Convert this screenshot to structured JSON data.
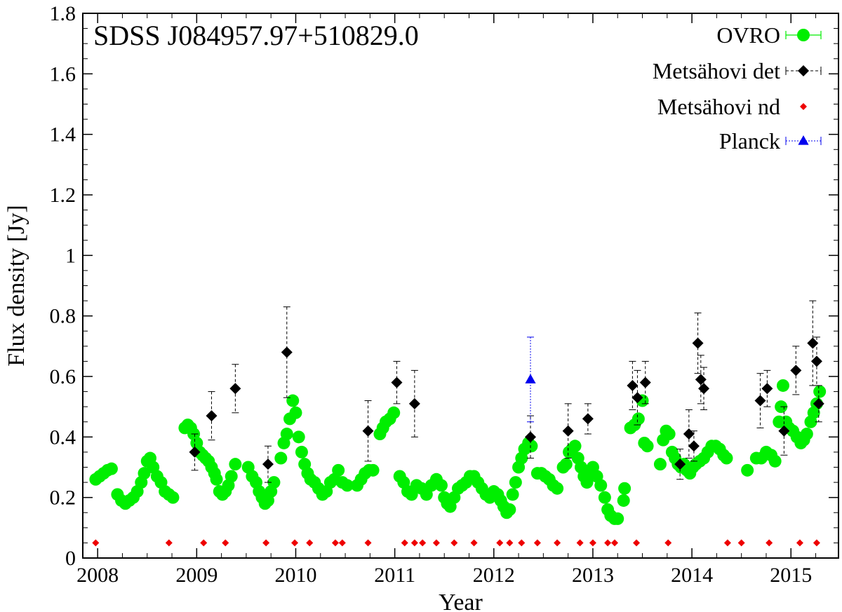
{
  "chart_data": {
    "type": "scatter",
    "title": "SDSS J084957.97+510829.0",
    "xlabel": "Year",
    "ylabel": "Flux density [Jy]",
    "xlim": [
      2007.85,
      2015.48
    ],
    "ylim": [
      0,
      1.8
    ],
    "xticks": [
      2008,
      2009,
      2010,
      2011,
      2012,
      2013,
      2014,
      2015
    ],
    "xtick_labels": [
      "2008",
      "2009",
      "2010",
      "2011",
      "2012",
      "2013",
      "2014",
      "2015"
    ],
    "yticks": [
      0,
      0.2,
      0.4,
      0.6,
      0.8,
      1,
      1.2,
      1.4,
      1.6,
      1.8
    ],
    "ytick_labels": [
      "0",
      "0.2",
      "0.4",
      "0.6",
      "0.8",
      "1",
      "1.2",
      "1.4",
      "1.6",
      "1.8"
    ],
    "legend_position": "top-right",
    "series": [
      {
        "name": "OVRO",
        "marker": "circle",
        "color": "#00ee00",
        "err": 0.02,
        "points": [
          [
            2007.98,
            0.26
          ],
          [
            2008.02,
            0.27
          ],
          [
            2008.06,
            0.28
          ],
          [
            2008.1,
            0.29
          ],
          [
            2008.14,
            0.295
          ],
          [
            2008.2,
            0.21
          ],
          [
            2008.24,
            0.19
          ],
          [
            2008.28,
            0.18
          ],
          [
            2008.32,
            0.19
          ],
          [
            2008.36,
            0.2
          ],
          [
            2008.4,
            0.22
          ],
          [
            2008.44,
            0.25
          ],
          [
            2008.47,
            0.28
          ],
          [
            2008.5,
            0.32
          ],
          [
            2008.53,
            0.33
          ],
          [
            2008.56,
            0.3
          ],
          [
            2008.6,
            0.27
          ],
          [
            2008.64,
            0.25
          ],
          [
            2008.68,
            0.22
          ],
          [
            2008.72,
            0.21
          ],
          [
            2008.76,
            0.2
          ],
          [
            2008.88,
            0.43
          ],
          [
            2008.91,
            0.44
          ],
          [
            2008.94,
            0.43
          ],
          [
            2008.97,
            0.41
          ],
          [
            2009.0,
            0.38
          ],
          [
            2009.03,
            0.35
          ],
          [
            2009.06,
            0.34
          ],
          [
            2009.09,
            0.33
          ],
          [
            2009.12,
            0.32
          ],
          [
            2009.15,
            0.3
          ],
          [
            2009.18,
            0.28
          ],
          [
            2009.2,
            0.26
          ],
          [
            2009.23,
            0.22
          ],
          [
            2009.26,
            0.21
          ],
          [
            2009.29,
            0.22
          ],
          [
            2009.32,
            0.24
          ],
          [
            2009.35,
            0.27
          ],
          [
            2009.39,
            0.31
          ],
          [
            2009.52,
            0.3
          ],
          [
            2009.56,
            0.27
          ],
          [
            2009.6,
            0.25
          ],
          [
            2009.63,
            0.22
          ],
          [
            2009.66,
            0.2
          ],
          [
            2009.69,
            0.18
          ],
          [
            2009.72,
            0.19
          ],
          [
            2009.75,
            0.22
          ],
          [
            2009.78,
            0.25
          ],
          [
            2009.85,
            0.33
          ],
          [
            2009.88,
            0.38
          ],
          [
            2009.91,
            0.41
          ],
          [
            2009.94,
            0.46
          ],
          [
            2009.97,
            0.52
          ],
          [
            2010.0,
            0.48
          ],
          [
            2010.03,
            0.4
          ],
          [
            2010.06,
            0.35
          ],
          [
            2010.09,
            0.31
          ],
          [
            2010.12,
            0.28
          ],
          [
            2010.15,
            0.26
          ],
          [
            2010.19,
            0.25
          ],
          [
            2010.23,
            0.23
          ],
          [
            2010.27,
            0.21
          ],
          [
            2010.31,
            0.22
          ],
          [
            2010.35,
            0.25
          ],
          [
            2010.39,
            0.26
          ],
          [
            2010.43,
            0.29
          ],
          [
            2010.47,
            0.25
          ],
          [
            2010.52,
            0.24
          ],
          [
            2010.62,
            0.24
          ],
          [
            2010.66,
            0.26
          ],
          [
            2010.7,
            0.28
          ],
          [
            2010.74,
            0.29
          ],
          [
            2010.78,
            0.29
          ],
          [
            2010.85,
            0.41
          ],
          [
            2010.88,
            0.43
          ],
          [
            2010.91,
            0.45
          ],
          [
            2010.95,
            0.46
          ],
          [
            2010.99,
            0.48
          ],
          [
            2011.05,
            0.27
          ],
          [
            2011.09,
            0.25
          ],
          [
            2011.13,
            0.22
          ],
          [
            2011.17,
            0.21
          ],
          [
            2011.22,
            0.24
          ],
          [
            2011.27,
            0.23
          ],
          [
            2011.32,
            0.21
          ],
          [
            2011.37,
            0.24
          ],
          [
            2011.42,
            0.26
          ],
          [
            2011.47,
            0.24
          ],
          [
            2011.5,
            0.2
          ],
          [
            2011.53,
            0.18
          ],
          [
            2011.56,
            0.17
          ],
          [
            2011.6,
            0.2
          ],
          [
            2011.64,
            0.23
          ],
          [
            2011.68,
            0.24
          ],
          [
            2011.72,
            0.25
          ],
          [
            2011.76,
            0.27
          ],
          [
            2011.8,
            0.27
          ],
          [
            2011.84,
            0.25
          ],
          [
            2011.88,
            0.23
          ],
          [
            2011.92,
            0.21
          ],
          [
            2011.96,
            0.2
          ],
          [
            2012.0,
            0.22
          ],
          [
            2012.04,
            0.21
          ],
          [
            2012.07,
            0.19
          ],
          [
            2012.1,
            0.17
          ],
          [
            2012.13,
            0.15
          ],
          [
            2012.16,
            0.16
          ],
          [
            2012.19,
            0.21
          ],
          [
            2012.22,
            0.25
          ],
          [
            2012.25,
            0.3
          ],
          [
            2012.28,
            0.33
          ],
          [
            2012.31,
            0.36
          ],
          [
            2012.35,
            0.38
          ],
          [
            2012.38,
            0.37
          ],
          [
            2012.44,
            0.28
          ],
          [
            2012.48,
            0.28
          ],
          [
            2012.52,
            0.27
          ],
          [
            2012.56,
            0.26
          ],
          [
            2012.6,
            0.24
          ],
          [
            2012.64,
            0.23
          ],
          [
            2012.7,
            0.3
          ],
          [
            2012.73,
            0.31
          ],
          [
            2012.76,
            0.35
          ],
          [
            2012.79,
            0.36
          ],
          [
            2012.82,
            0.37
          ],
          [
            2012.85,
            0.33
          ],
          [
            2012.88,
            0.3
          ],
          [
            2012.91,
            0.27
          ],
          [
            2012.94,
            0.25
          ],
          [
            2012.97,
            0.28
          ],
          [
            2013.0,
            0.3
          ],
          [
            2013.04,
            0.27
          ],
          [
            2013.08,
            0.24
          ],
          [
            2013.12,
            0.2
          ],
          [
            2013.15,
            0.16
          ],
          [
            2013.18,
            0.14
          ],
          [
            2013.22,
            0.13
          ],
          [
            2013.25,
            0.13
          ],
          [
            2013.31,
            0.19
          ],
          [
            2013.32,
            0.23
          ],
          [
            2013.38,
            0.43
          ],
          [
            2013.42,
            0.44
          ],
          [
            2013.46,
            0.46
          ],
          [
            2013.5,
            0.52
          ],
          [
            2013.52,
            0.38
          ],
          [
            2013.55,
            0.37
          ],
          [
            2013.68,
            0.31
          ],
          [
            2013.71,
            0.39
          ],
          [
            2013.74,
            0.42
          ],
          [
            2013.77,
            0.41
          ],
          [
            2013.8,
            0.35
          ],
          [
            2013.83,
            0.33
          ],
          [
            2013.86,
            0.31
          ],
          [
            2013.89,
            0.3
          ],
          [
            2013.92,
            0.31
          ],
          [
            2013.95,
            0.29
          ],
          [
            2013.98,
            0.28
          ],
          [
            2014.01,
            0.3
          ],
          [
            2014.04,
            0.31
          ],
          [
            2014.08,
            0.32
          ],
          [
            2014.12,
            0.33
          ],
          [
            2014.16,
            0.35
          ],
          [
            2014.2,
            0.37
          ],
          [
            2014.24,
            0.37
          ],
          [
            2014.28,
            0.36
          ],
          [
            2014.32,
            0.34
          ],
          [
            2014.35,
            0.33
          ],
          [
            2014.56,
            0.29
          ],
          [
            2014.65,
            0.33
          ],
          [
            2014.7,
            0.33
          ],
          [
            2014.75,
            0.35
          ],
          [
            2014.8,
            0.34
          ],
          [
            2014.84,
            0.32
          ],
          [
            2014.88,
            0.45
          ],
          [
            2014.9,
            0.5
          ],
          [
            2014.92,
            0.57
          ],
          [
            2014.95,
            0.45
          ],
          [
            2014.98,
            0.43
          ],
          [
            2015.02,
            0.42
          ],
          [
            2015.06,
            0.4
          ],
          [
            2015.1,
            0.38
          ],
          [
            2015.13,
            0.39
          ],
          [
            2015.16,
            0.41
          ],
          [
            2015.2,
            0.45
          ],
          [
            2015.23,
            0.48
          ],
          [
            2015.26,
            0.51
          ],
          [
            2015.29,
            0.55
          ]
        ]
      },
      {
        "name": "Metsähovi det",
        "marker": "diamond",
        "color": "#000000",
        "points": [
          [
            2008.98,
            0.35,
            0.06
          ],
          [
            2009.15,
            0.47,
            0.08
          ],
          [
            2009.39,
            0.56,
            0.08
          ],
          [
            2009.72,
            0.31,
            0.06
          ],
          [
            2009.91,
            0.68,
            0.15
          ],
          [
            2010.73,
            0.42,
            0.1
          ],
          [
            2011.02,
            0.58,
            0.07
          ],
          [
            2011.2,
            0.51,
            0.11
          ],
          [
            2012.37,
            0.4,
            0.07
          ],
          [
            2012.75,
            0.42,
            0.09
          ],
          [
            2012.95,
            0.46,
            0.05
          ],
          [
            2013.4,
            0.57,
            0.08
          ],
          [
            2013.45,
            0.53,
            0.09
          ],
          [
            2013.53,
            0.58,
            0.07
          ],
          [
            2013.88,
            0.31,
            0.05
          ],
          [
            2013.97,
            0.41,
            0.08
          ],
          [
            2014.02,
            0.37,
            0.05
          ],
          [
            2014.06,
            0.71,
            0.1
          ],
          [
            2014.09,
            0.59,
            0.08
          ],
          [
            2014.12,
            0.56,
            0.07
          ],
          [
            2014.69,
            0.52,
            0.09
          ],
          [
            2014.76,
            0.56,
            0.06
          ],
          [
            2014.93,
            0.42,
            0.08
          ],
          [
            2015.05,
            0.62,
            0.08
          ],
          [
            2015.22,
            0.71,
            0.14
          ],
          [
            2015.26,
            0.65,
            0.08
          ],
          [
            2015.28,
            0.51,
            0.06
          ]
        ]
      },
      {
        "name": "Metsähovi nd",
        "marker": "small-diamond",
        "color": "#ee0000",
        "points": [
          [
            2007.98,
            0.05
          ],
          [
            2008.72,
            0.05
          ],
          [
            2009.07,
            0.05
          ],
          [
            2009.29,
            0.05
          ],
          [
            2009.7,
            0.05
          ],
          [
            2009.99,
            0.05
          ],
          [
            2010.14,
            0.05
          ],
          [
            2010.4,
            0.05
          ],
          [
            2010.47,
            0.05
          ],
          [
            2010.73,
            0.05
          ],
          [
            2011.1,
            0.05
          ],
          [
            2011.2,
            0.05
          ],
          [
            2011.28,
            0.05
          ],
          [
            2011.42,
            0.05
          ],
          [
            2011.6,
            0.05
          ],
          [
            2011.8,
            0.05
          ],
          [
            2012.06,
            0.05
          ],
          [
            2012.16,
            0.05
          ],
          [
            2012.28,
            0.05
          ],
          [
            2012.44,
            0.05
          ],
          [
            2012.64,
            0.05
          ],
          [
            2012.87,
            0.05
          ],
          [
            2013.0,
            0.05
          ],
          [
            2013.15,
            0.05
          ],
          [
            2013.22,
            0.05
          ],
          [
            2013.44,
            0.05
          ],
          [
            2013.76,
            0.05
          ],
          [
            2014.36,
            0.05
          ],
          [
            2014.5,
            0.05
          ],
          [
            2014.78,
            0.05
          ],
          [
            2015.09,
            0.05
          ],
          [
            2015.26,
            0.05
          ]
        ]
      },
      {
        "name": "Planck",
        "marker": "triangle",
        "color": "#0000ee",
        "points": [
          [
            2012.37,
            0.59,
            0.14
          ]
        ]
      }
    ]
  }
}
